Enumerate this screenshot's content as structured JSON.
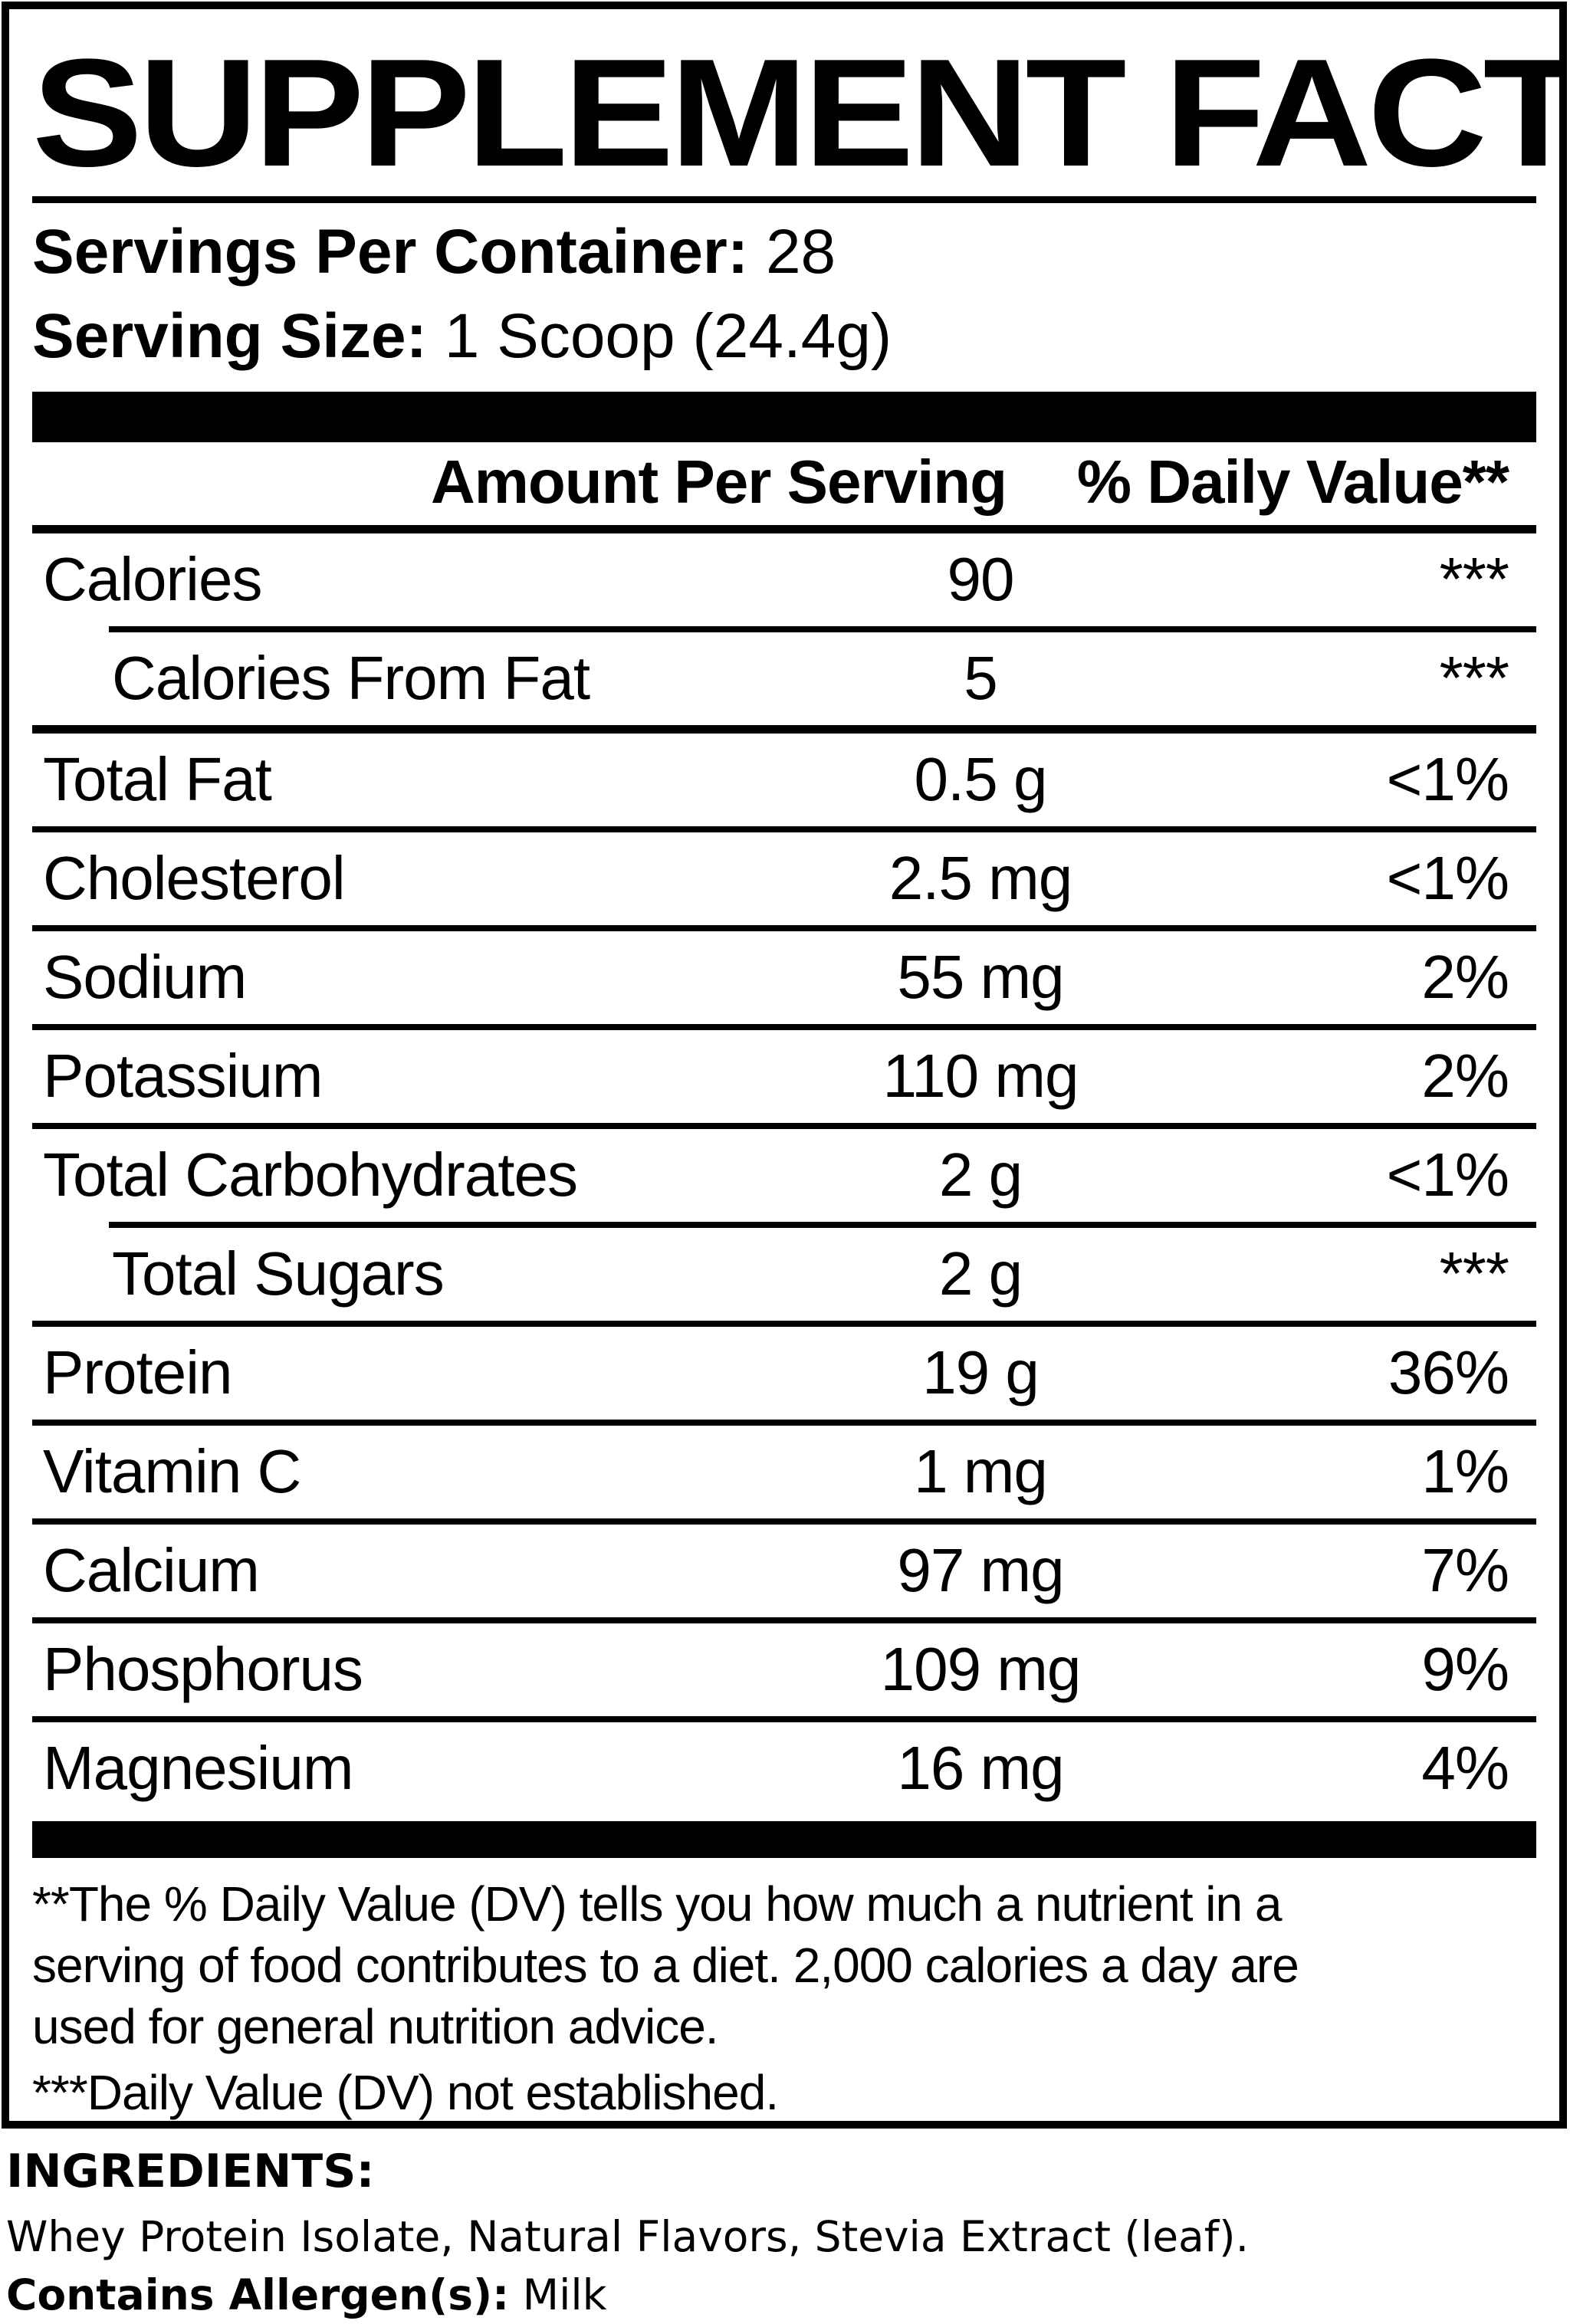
{
  "title": "SUPPLEMENT FACTS",
  "serving_info": {
    "servings_per_container_label": "Servings Per Container:",
    "servings_per_container_value": "28",
    "serving_size_label": "Serving Size:",
    "serving_size_value": "1 Scoop (24.4g)"
  },
  "table": {
    "amount_header": "Amount Per Serving",
    "dv_header": "% Daily Value**",
    "rows": [
      {
        "name": "Calories",
        "amount": "90",
        "dv": "***",
        "sub": false,
        "rule_after": "indented"
      },
      {
        "name": "Calories From Fat",
        "amount": "5",
        "dv": "***",
        "sub": true,
        "rule_after": "thick"
      },
      {
        "name": "Total Fat",
        "amount": "0.5 g",
        "dv": "<1%",
        "sub": false,
        "rule_after": "normal"
      },
      {
        "name": "Cholesterol",
        "amount": "2.5 mg",
        "dv": "<1%",
        "sub": false,
        "rule_after": "normal"
      },
      {
        "name": "Sodium",
        "amount": "55 mg",
        "dv": "2%",
        "sub": false,
        "rule_after": "normal"
      },
      {
        "name": "Potassium",
        "amount": "110 mg",
        "dv": "2%",
        "sub": false,
        "rule_after": "normal"
      },
      {
        "name": "Total Carbohydrates",
        "amount": "2 g",
        "dv": "<1%",
        "sub": false,
        "rule_after": "indented"
      },
      {
        "name": "Total Sugars",
        "amount": "2 g",
        "dv": "***",
        "sub": true,
        "rule_after": "normal"
      },
      {
        "name": "Protein",
        "amount": "19 g",
        "dv": "36%",
        "sub": false,
        "rule_after": "normal"
      },
      {
        "name": "Vitamin C",
        "amount": "1 mg",
        "dv": "1%",
        "sub": false,
        "rule_after": "normal"
      },
      {
        "name": "Calcium",
        "amount": "97 mg",
        "dv": "7%",
        "sub": false,
        "rule_after": "normal"
      },
      {
        "name": "Phosphorus",
        "amount": "109 mg",
        "dv": "9%",
        "sub": false,
        "rule_after": "normal"
      },
      {
        "name": "Magnesium",
        "amount": "16 mg",
        "dv": "4%",
        "sub": false,
        "rule_after": "none"
      }
    ]
  },
  "footnotes": {
    "lines": [
      "**The % Daily Value (DV) tells you how much a nutrient in a",
      "serving of food contributes to a diet. 2,000 calories a day are",
      "used for general nutrition advice.",
      "***Daily Value (DV) not established."
    ]
  },
  "ingredients": {
    "heading": "INGREDIENTS:",
    "list": "Whey Protein Isolate, Natural Flavors, Stevia Extract (leaf).",
    "allergen_label": "Contains Allergen(s):",
    "allergen_value": " Milk"
  },
  "colors": {
    "ink": "#000000",
    "paper": "#ffffff"
  }
}
